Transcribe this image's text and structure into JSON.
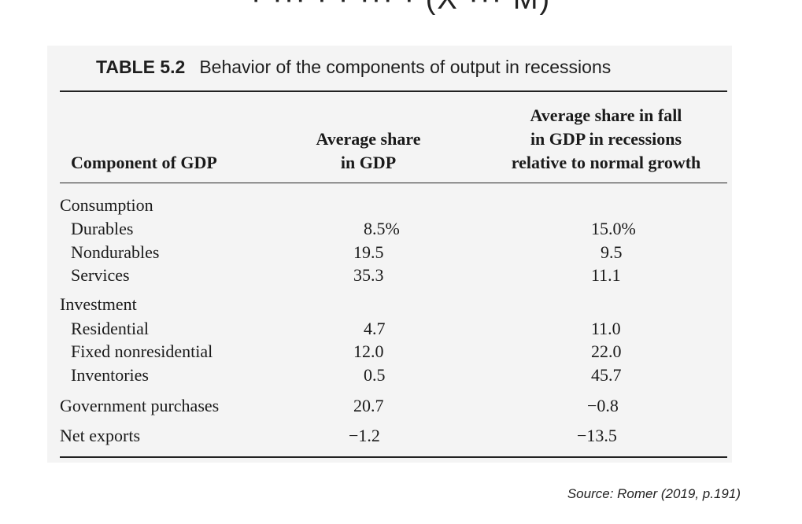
{
  "top_fragment": "· ··· · · ··· · (X ··· M)",
  "caption": {
    "number": "TABLE 5.2",
    "title": "Behavior of the components of output in recessions"
  },
  "headers": {
    "col1": "Component of GDP",
    "col2": [
      "Average share",
      "in GDP"
    ],
    "col3": [
      "Average share in fall",
      "in GDP in recessions",
      "relative to normal growth"
    ]
  },
  "rows": [
    {
      "label": "Consumption",
      "indent": false,
      "share": "",
      "fall": ""
    },
    {
      "label": "Durables",
      "indent": true,
      "share": "8.5%",
      "fall": "15.0%"
    },
    {
      "label": "Nondurables",
      "indent": true,
      "share": "19.5",
      "fall": "9.5"
    },
    {
      "label": "Services",
      "indent": true,
      "share": "35.3",
      "fall": "11.1"
    },
    {
      "label": "Investment",
      "indent": false,
      "share": "",
      "fall": ""
    },
    {
      "label": "Residential",
      "indent": true,
      "share": "4.7",
      "fall": "11.0"
    },
    {
      "label": "Fixed nonresidential",
      "indent": true,
      "share": "12.0",
      "fall": "22.0"
    },
    {
      "label": "Inventories",
      "indent": true,
      "share": "0.5",
      "fall": "45.7"
    },
    {
      "label": "Government purchases",
      "indent": false,
      "share": "20.7",
      "fall": "−0.8"
    },
    {
      "label": "Net exports",
      "indent": false,
      "share": "−1.2",
      "fall": "−13.5"
    }
  ],
  "source": "Source: Romer (2019, p.191)"
}
